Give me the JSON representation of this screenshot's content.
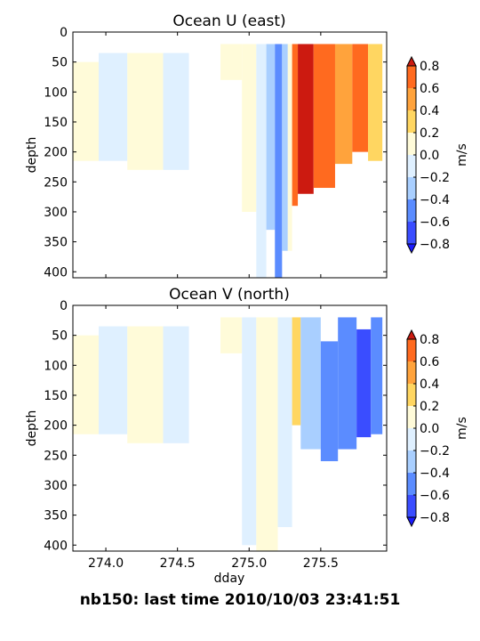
{
  "caption": "nb150: last time 2010/10/03 23:41:51",
  "colors": {
    "levels": [
      -0.8,
      -0.6,
      -0.4,
      -0.2,
      0.0,
      0.2,
      0.4,
      0.6,
      0.8
    ],
    "bands": [
      "#3a4dff",
      "#5b8cff",
      "#a9cfff",
      "#dff0ff",
      "#fffbd9",
      "#ffd661",
      "#ffa33c",
      "#ff6a1f"
    ],
    "under": "#1a1aff",
    "over": "#cc1a10"
  },
  "chart_data": [
    {
      "type": "heatmap",
      "title": "Ocean U (east)",
      "xlabel": "",
      "ylabel": "depth",
      "xlim": [
        273.77,
        275.96
      ],
      "ylim": [
        410,
        0
      ],
      "yticks": [
        "0",
        "50",
        "100",
        "150",
        "200",
        "250",
        "300",
        "350",
        "400"
      ],
      "xticks": [],
      "colorbar": {
        "label": "m/s",
        "ticks": [
          "0.8",
          "0.6",
          "0.4",
          "0.2",
          "0.0",
          "−0.2",
          "−0.4",
          "−0.6",
          "−0.8"
        ]
      },
      "grid": false,
      "cells": [
        {
          "x0": 273.77,
          "x1": 273.95,
          "y0": 50,
          "y1": 215,
          "v": 0.05
        },
        {
          "x0": 273.95,
          "x1": 274.15,
          "y0": 35,
          "y1": 215,
          "v": -0.05
        },
        {
          "x0": 274.15,
          "x1": 274.4,
          "y0": 35,
          "y1": 230,
          "v": 0.05
        },
        {
          "x0": 274.4,
          "x1": 274.58,
          "y0": 35,
          "y1": 230,
          "v": -0.05
        },
        {
          "x0": 274.8,
          "x1": 274.95,
          "y0": 20,
          "y1": 80,
          "v": 0.05
        },
        {
          "x0": 274.95,
          "x1": 275.05,
          "y0": 20,
          "y1": 300,
          "v": 0.05
        },
        {
          "x0": 275.05,
          "x1": 275.12,
          "y0": 20,
          "y1": 410,
          "v": -0.1
        },
        {
          "x0": 275.12,
          "x1": 275.18,
          "y0": 20,
          "y1": 330,
          "v": -0.3
        },
        {
          "x0": 275.18,
          "x1": 275.23,
          "y0": 20,
          "y1": 410,
          "v": -0.45
        },
        {
          "x0": 275.23,
          "x1": 275.27,
          "y0": 20,
          "y1": 365,
          "v": -0.3
        },
        {
          "x0": 275.27,
          "x1": 275.3,
          "y0": 20,
          "y1": 365,
          "v": 0.1
        },
        {
          "x0": 275.3,
          "x1": 275.34,
          "y0": 20,
          "y1": 290,
          "v": 0.7
        },
        {
          "x0": 275.34,
          "x1": 275.45,
          "y0": 20,
          "y1": 270,
          "v": 0.9
        },
        {
          "x0": 275.45,
          "x1": 275.6,
          "y0": 20,
          "y1": 260,
          "v": 0.7
        },
        {
          "x0": 275.6,
          "x1": 275.72,
          "y0": 20,
          "y1": 220,
          "v": 0.5
        },
        {
          "x0": 275.72,
          "x1": 275.83,
          "y0": 20,
          "y1": 200,
          "v": 0.7
        },
        {
          "x0": 275.83,
          "x1": 275.93,
          "y0": 20,
          "y1": 215,
          "v": 0.3
        }
      ]
    },
    {
      "type": "heatmap",
      "title": "Ocean V (north)",
      "xlabel": "dday",
      "ylabel": "depth",
      "xlim": [
        273.77,
        275.96
      ],
      "ylim": [
        410,
        0
      ],
      "yticks": [
        "0",
        "50",
        "100",
        "150",
        "200",
        "250",
        "300",
        "350",
        "400"
      ],
      "xticks": [
        "274.0",
        "274.5",
        "275.0",
        "275.5"
      ],
      "xtick_values": [
        274.0,
        274.5,
        275.0,
        275.5
      ],
      "colorbar": {
        "label": "m/s",
        "ticks": [
          "0.8",
          "0.6",
          "0.4",
          "0.2",
          "0.0",
          "−0.2",
          "−0.4",
          "−0.6",
          "−0.8"
        ]
      },
      "grid": false,
      "cells": [
        {
          "x0": 273.77,
          "x1": 273.95,
          "y0": 50,
          "y1": 215,
          "v": 0.05
        },
        {
          "x0": 273.95,
          "x1": 274.15,
          "y0": 35,
          "y1": 215,
          "v": -0.05
        },
        {
          "x0": 274.15,
          "x1": 274.4,
          "y0": 35,
          "y1": 230,
          "v": 0.05
        },
        {
          "x0": 274.4,
          "x1": 274.58,
          "y0": 35,
          "y1": 230,
          "v": -0.05
        },
        {
          "x0": 274.8,
          "x1": 274.95,
          "y0": 20,
          "y1": 80,
          "v": 0.05
        },
        {
          "x0": 274.95,
          "x1": 275.05,
          "y0": 20,
          "y1": 400,
          "v": -0.05
        },
        {
          "x0": 275.05,
          "x1": 275.2,
          "y0": 20,
          "y1": 410,
          "v": 0.1
        },
        {
          "x0": 275.2,
          "x1": 275.3,
          "y0": 20,
          "y1": 370,
          "v": -0.05
        },
        {
          "x0": 275.3,
          "x1": 275.36,
          "y0": 20,
          "y1": 200,
          "v": 0.3
        },
        {
          "x0": 275.36,
          "x1": 275.5,
          "y0": 20,
          "y1": 240,
          "v": -0.3
        },
        {
          "x0": 275.5,
          "x1": 275.62,
          "y0": 60,
          "y1": 260,
          "v": -0.5
        },
        {
          "x0": 275.62,
          "x1": 275.75,
          "y0": 20,
          "y1": 240,
          "v": -0.5
        },
        {
          "x0": 275.75,
          "x1": 275.85,
          "y0": 40,
          "y1": 220,
          "v": -0.7
        },
        {
          "x0": 275.85,
          "x1": 275.93,
          "y0": 20,
          "y1": 215,
          "v": -0.5
        }
      ]
    }
  ]
}
